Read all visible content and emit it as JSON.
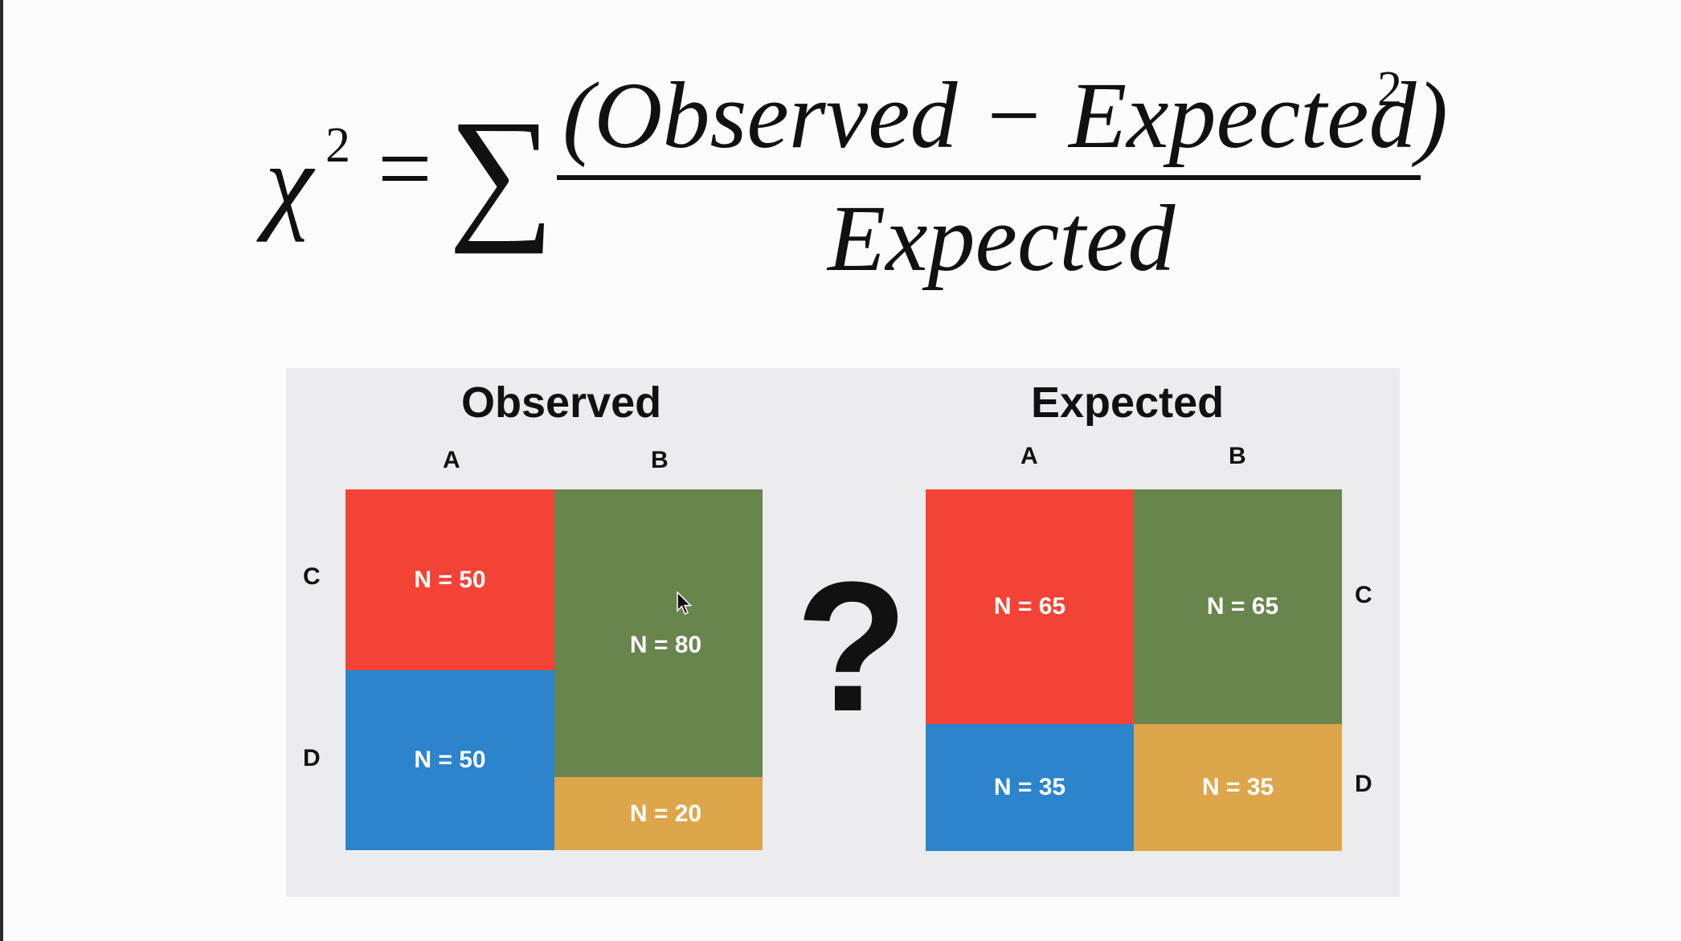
{
  "formula": {
    "chi": "χ",
    "chi_exponent": "2",
    "equals": "=",
    "sum": "∑",
    "numerator": "(Observed − Expected)",
    "numerator_exponent": "2",
    "denominator": "Expected"
  },
  "colors": {
    "red": "#f44336",
    "green": "#67854d",
    "blue": "#2b84cc",
    "orange": "#dda64a",
    "panel": "#ececee"
  },
  "observed": {
    "title": "Observed",
    "col_a": "A",
    "col_b": "B",
    "row_c": "C",
    "row_d": "D",
    "cells": {
      "ac": "N = 50",
      "ad": "N = 50",
      "bc": "N = 80",
      "bd": "N = 20"
    }
  },
  "separator": "?",
  "expected": {
    "title": "Expected",
    "col_a": "A",
    "col_b": "B",
    "row_c": "C",
    "row_d": "D",
    "cells": {
      "ac": "N = 65",
      "bc": "N = 65",
      "ad": "N = 35",
      "bd": "N = 35"
    }
  }
}
